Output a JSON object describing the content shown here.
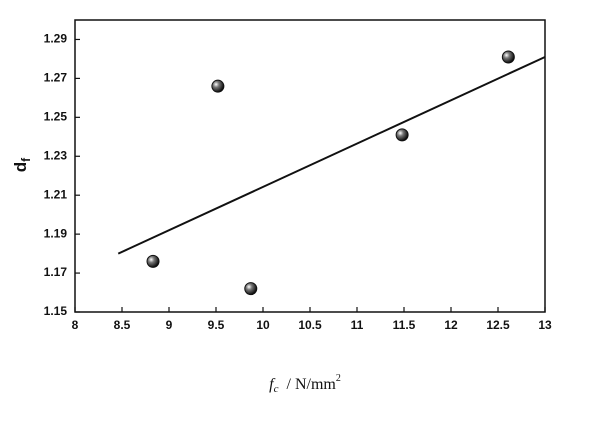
{
  "chart_data": {
    "type": "scatter",
    "xlabel": {
      "main": "f",
      "sub": "c",
      "unit": "/ N/mm",
      "sup": "2"
    },
    "ylabel": {
      "main": "d",
      "sub": "f"
    },
    "x": [
      8.83,
      9.52,
      9.87,
      11.48,
      12.61
    ],
    "values": [
      1.176,
      1.266,
      1.162,
      1.241,
      1.281
    ],
    "color": "#111111",
    "trendline": {
      "x": [
        8.46,
        13
      ],
      "y": [
        1.18,
        1.281
      ]
    },
    "xlim": [
      8,
      13
    ],
    "xticks": [
      8,
      8.5,
      9,
      9.5,
      10,
      10.5,
      11,
      11.5,
      12,
      12.5,
      13
    ],
    "ylim": [
      1.15,
      1.3
    ],
    "yticks": [
      1.15,
      1.17,
      1.19,
      1.21,
      1.23,
      1.25,
      1.27,
      1.29
    ],
    "grid": false
  }
}
